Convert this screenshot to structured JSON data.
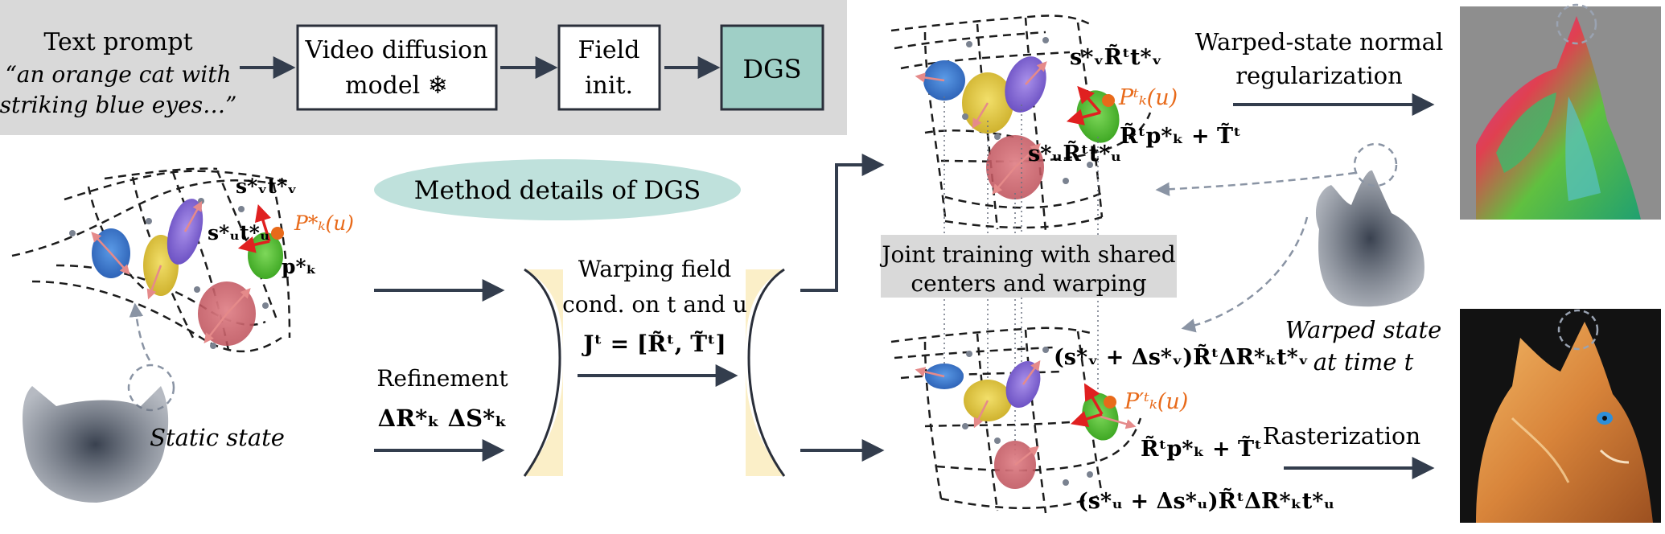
{
  "top_bar": {
    "prompt_title": "Text prompt",
    "prompt_line1": "“an orange cat with",
    "prompt_line2": "striking blue eyes…”",
    "box_video_line1": "Video diffusion",
    "box_video_line2": "model ❄",
    "box_field_line1": "Field",
    "box_field_line2": "init.",
    "box_dgs": "DGS"
  },
  "method_label": "Method details of DGS",
  "left_labels": {
    "svtv": "s*ᵥt*ᵥ",
    "sutu": "s*ᵤt*ᵤ",
    "pk_u": "P*ₖ(u)",
    "pk": "p*ₖ",
    "static_state": "Static state"
  },
  "middle": {
    "warp_line1": "Warping field",
    "warp_line2": "cond. on t and u",
    "warp_line3": "Jᵗ = [R̃ᵗ, T̃ᵗ]",
    "refine_line1": "Refinement",
    "refine_line2": "ΔR*ₖ  ΔS*ₖ"
  },
  "upper_right_labels": {
    "sv_r_tv": "s*ᵥR̃ᵗt*ᵥ",
    "pkt_u": "Pᵗₖ(u)",
    "r_pk_t": "R̃ᵗp*ₖ + T̃ᵗ",
    "su_r_tu": "s*ᵤR̃ᵗt*ᵤ"
  },
  "joint_training_line1": "Joint training with shared",
  "joint_training_line2": "centers and warping",
  "lower_right_labels": {
    "sv_delta": "(s*ᵥ + Δs*ᵥ)R̃ᵗΔR*ₖt*ᵥ",
    "pkt_prime": "P′ᵗₖ(u)",
    "r_pk_t": "R̃ᵗp*ₖ + T̃ᵗ",
    "su_delta": "(s*ᵤ + Δs*ᵤ)R̃ᵗΔR*ₖt*ᵤ"
  },
  "right_labels": {
    "normal_reg_line1": "Warped-state normal",
    "normal_reg_line2": "regularization",
    "warped_state_line1": "Warped state",
    "warped_state_line2": "at time t",
    "rasterization": "Rasterization"
  },
  "colors": {
    "gray_panel": "#d9d9d9",
    "dgs_box": "#9fcfc6",
    "method_ellipse": "#bfe1dc",
    "warp_funnel": "#fbefc8",
    "arrow": "#333d4d",
    "orange": "#e86a1a",
    "gauss_blue": "#3e7fd1",
    "gauss_yellow": "#e7cf4a",
    "gauss_purple": "#8d72d8",
    "gauss_green": "#5ec23a",
    "gauss_red": "#cf6a72"
  }
}
